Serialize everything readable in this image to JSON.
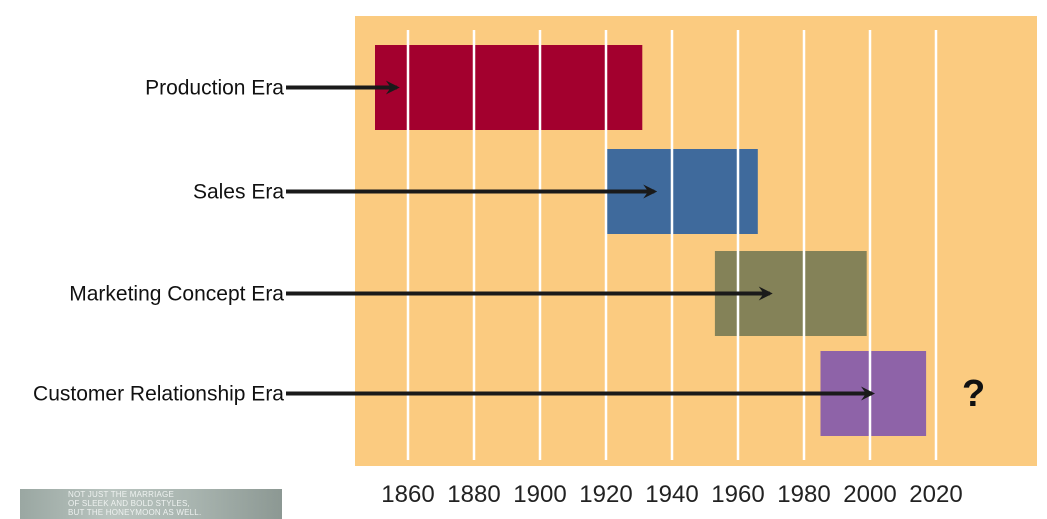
{
  "colors": {
    "background_panel": "#fbcb80",
    "gridline": "#ffffff",
    "arrow": "#1a1a1a"
  },
  "chart_data": {
    "type": "bar",
    "orientation": "horizontal-timeline",
    "x_axis": {
      "ticks": [
        1860,
        1880,
        1900,
        1920,
        1940,
        1960,
        1980,
        2000,
        2020
      ],
      "range": [
        1840,
        2040
      ],
      "gridlines": true
    },
    "eras": [
      {
        "label": "Production Era",
        "start": 1850,
        "end": 1931,
        "arrow_to": 1856,
        "color": "#a3002e"
      },
      {
        "label": "Sales Era",
        "start": 1920,
        "end": 1966,
        "arrow_to": 1934,
        "color": "#3f6a9c"
      },
      {
        "label": "Marketing Concept Era",
        "start": 1953,
        "end": 1999,
        "arrow_to": 1969,
        "color": "#848258"
      },
      {
        "label": "Customer Relationship Era",
        "start": 1985,
        "end": 2017,
        "arrow_to": 2000,
        "color": "#8e63a8"
      }
    ],
    "annotation": "?"
  },
  "thumbnail": {
    "lines": [
      "NOT JUST THE MARRIAGE",
      "OF SLEEK AND BOLD STYLES,",
      "BUT THE HONEYMOON AS WELL."
    ]
  }
}
